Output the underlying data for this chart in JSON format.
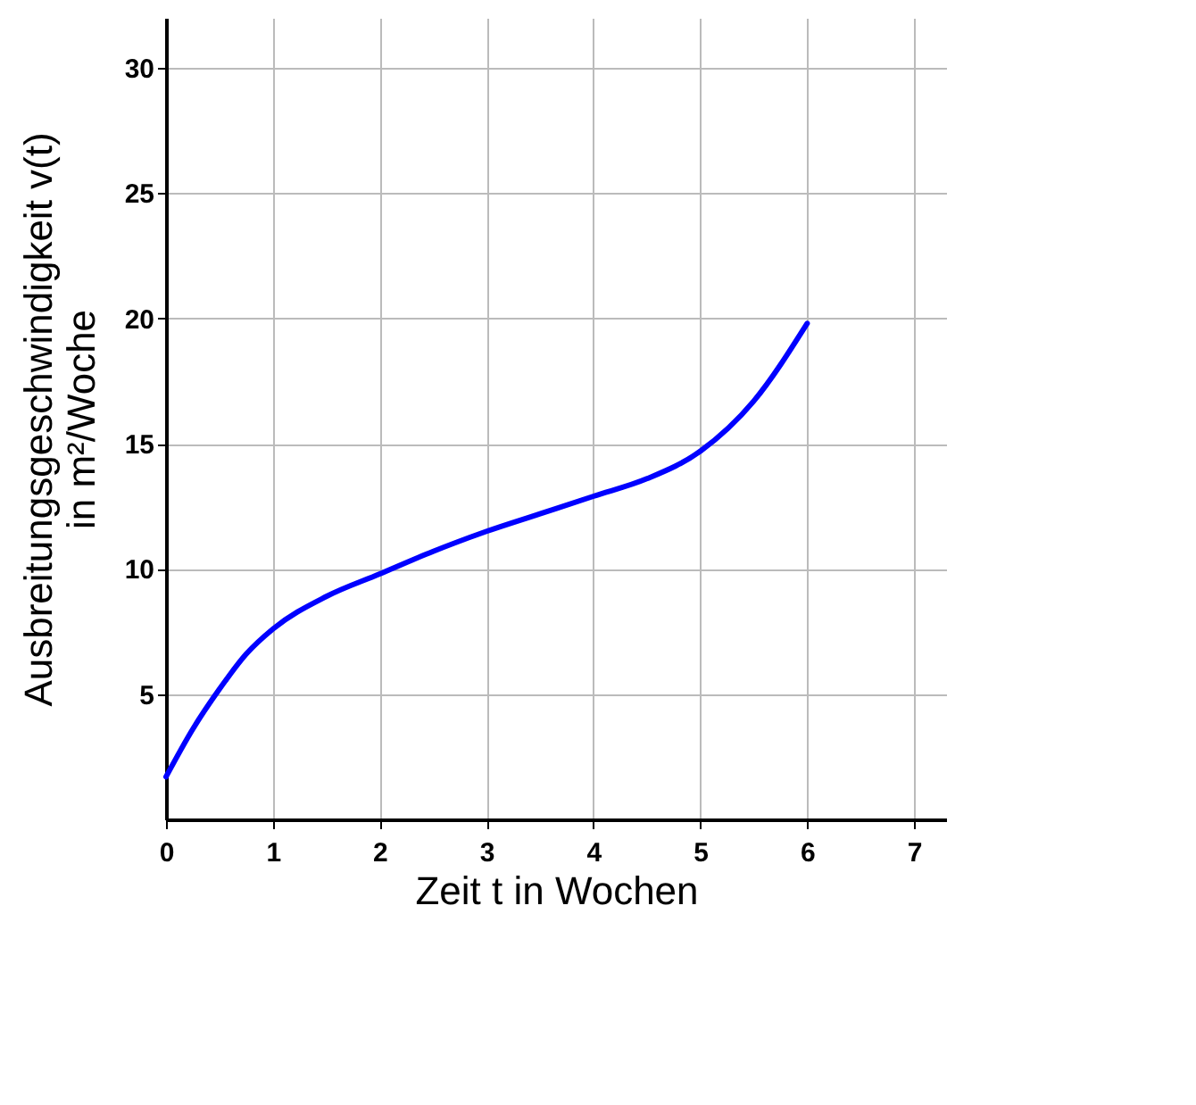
{
  "chart_data": {
    "type": "line",
    "xlabel": "Zeit t in Wochen",
    "ylabel": "Ausbreitungsgeschwindigkeit v(t)\nin m²/Woche",
    "x": [
      0,
      0.25,
      0.5,
      0.75,
      1,
      1.5,
      2,
      2.5,
      3,
      3.5,
      4,
      4.5,
      5,
      5.5,
      6
    ],
    "series": [
      {
        "color": "#0000ff",
        "values": [
          1.7,
          3.6,
          5.2,
          6.6,
          7.6,
          8.9,
          9.8,
          10.7,
          11.5,
          12.2,
          12.9,
          13.6,
          14.7,
          16.7,
          19.8
        ]
      }
    ],
    "xlim": [
      0,
      7.3
    ],
    "ylim": [
      0,
      32
    ],
    "xticks": [
      0,
      1,
      2,
      3,
      4,
      5,
      6,
      7
    ],
    "yticks": [
      5,
      10,
      15,
      20,
      25,
      30
    ],
    "grid": true,
    "marker": "none",
    "line_style": "solid"
  }
}
